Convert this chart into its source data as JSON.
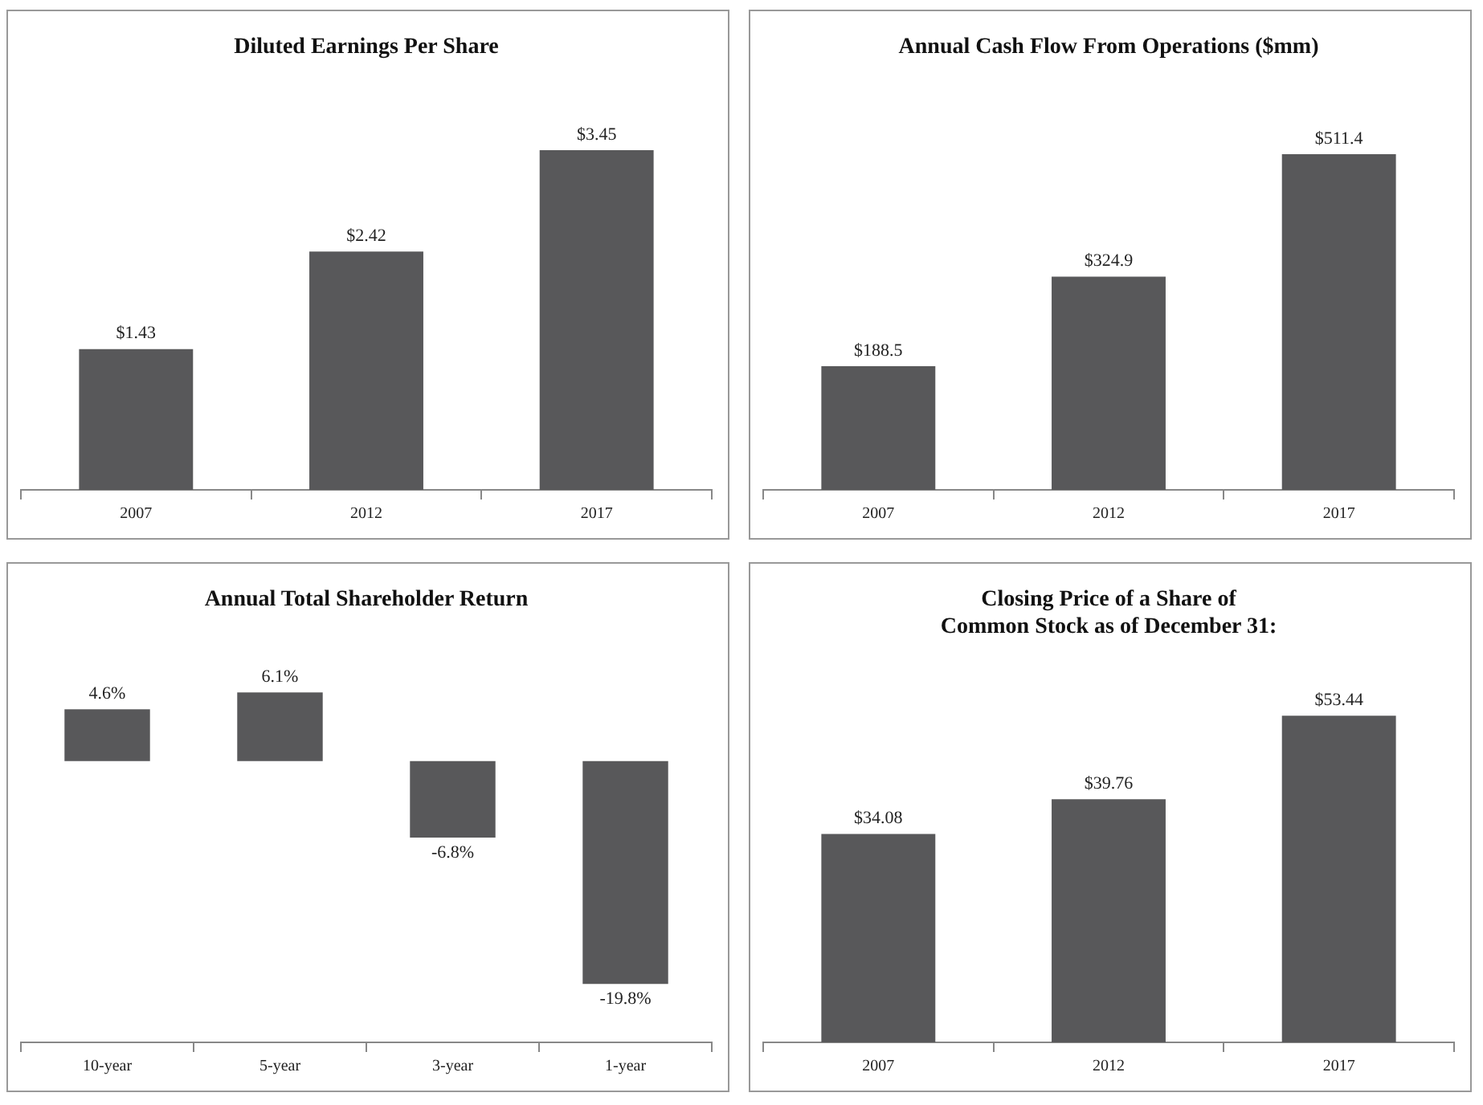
{
  "chart_data": [
    {
      "type": "bar",
      "title": "Diluted Earnings Per Share",
      "categories": [
        "2007",
        "2012",
        "2017"
      ],
      "values": [
        1.43,
        2.42,
        3.45
      ],
      "value_labels": [
        "$1.43",
        "$2.42",
        "$3.45"
      ],
      "color": "#58585a",
      "grid": false,
      "legend": false,
      "tick_labels": "x"
    },
    {
      "type": "bar",
      "title": "Annual Cash Flow From Operations ($mm)",
      "categories": [
        "2007",
        "2012",
        "2017"
      ],
      "values": [
        188.5,
        324.9,
        511.4
      ],
      "value_labels": [
        "$188.5",
        "$324.9",
        "$511.4"
      ],
      "color": "#58585a",
      "grid": false,
      "legend": false,
      "tick_labels": "x"
    },
    {
      "type": "bar",
      "title": "Annual Total Shareholder Return",
      "categories": [
        "10-year",
        "5-year",
        "3-year",
        "1-year"
      ],
      "values": [
        4.6,
        6.1,
        -6.8,
        -19.8
      ],
      "value_labels": [
        "4.6%",
        "6.1%",
        "-6.8%",
        "-19.8%"
      ],
      "color": "#58585a",
      "grid": false,
      "legend": false,
      "tick_labels": "x"
    },
    {
      "type": "bar",
      "title": "Closing Price of a Share of\nCommon Stock as of December 31:",
      "categories": [
        "2007",
        "2012",
        "2017"
      ],
      "values": [
        34.08,
        39.76,
        53.44
      ],
      "value_labels": [
        "$34.08",
        "$39.76",
        "$53.44"
      ],
      "color": "#58585a",
      "grid": false,
      "legend": false,
      "tick_labels": "x"
    }
  ]
}
